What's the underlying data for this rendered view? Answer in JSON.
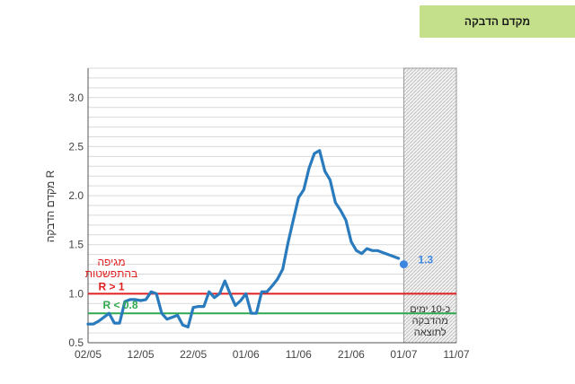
{
  "header": {
    "title": "מקדם הדבקה"
  },
  "colors": {
    "accent_green": "#c5e08a",
    "series_blue": "#2a7bbd",
    "threshold_red": "#e02020",
    "threshold_green": "#2fa84f",
    "point_blue": "#3d86e0"
  },
  "chart_data": {
    "type": "line",
    "title": "",
    "ylabel": "מקדם הדבקה R",
    "xlabel": "",
    "ylim": [
      0.5,
      3.3
    ],
    "y_ticks": [
      "0.5",
      "1.0",
      "1.5",
      "2.0",
      "2.5",
      "3.0"
    ],
    "x_ticks": [
      {
        "date": "2020-05-02",
        "label": "02/05"
      },
      {
        "date": "2020-05-12",
        "label": "12/05"
      },
      {
        "date": "2020-05-22",
        "label": "22/05"
      },
      {
        "date": "2020-06-01",
        "label": "01/06"
      },
      {
        "date": "2020-06-11",
        "label": "11/06"
      },
      {
        "date": "2020-06-21",
        "label": "21/06"
      },
      {
        "date": "2020-07-01",
        "label": "01/07"
      },
      {
        "date": "2020-07-11",
        "label": "11/07"
      }
    ],
    "xlim": [
      "2020-05-02",
      "2020-07-11"
    ],
    "grid": true,
    "series": [
      {
        "x": [
          "2020-05-02",
          "2020-05-03",
          "2020-05-04",
          "2020-05-05",
          "2020-05-06",
          "2020-05-07",
          "2020-05-08",
          "2020-05-09",
          "2020-05-10",
          "2020-05-11",
          "2020-05-12",
          "2020-05-13",
          "2020-05-14",
          "2020-05-15",
          "2020-05-16",
          "2020-05-17",
          "2020-05-18",
          "2020-05-19",
          "2020-05-20",
          "2020-05-21",
          "2020-05-22",
          "2020-05-23",
          "2020-05-24",
          "2020-05-25",
          "2020-05-26",
          "2020-05-27",
          "2020-05-28",
          "2020-05-29",
          "2020-05-30",
          "2020-05-31",
          "2020-06-01",
          "2020-06-02",
          "2020-06-03",
          "2020-06-04",
          "2020-06-05",
          "2020-06-06",
          "2020-06-07",
          "2020-06-08",
          "2020-06-09",
          "2020-06-10",
          "2020-06-11",
          "2020-06-12",
          "2020-06-13",
          "2020-06-14",
          "2020-06-15",
          "2020-06-16",
          "2020-06-17",
          "2020-06-18",
          "2020-06-19",
          "2020-06-20",
          "2020-06-21",
          "2020-06-22",
          "2020-06-23",
          "2020-06-24",
          "2020-06-25",
          "2020-06-26",
          "2020-06-27",
          "2020-06-28",
          "2020-06-29",
          "2020-06-30"
        ],
        "values": [
          0.69,
          0.69,
          0.72,
          0.76,
          0.8,
          0.7,
          0.7,
          0.92,
          0.94,
          0.94,
          0.93,
          0.94,
          1.02,
          1.0,
          0.8,
          0.74,
          0.76,
          0.78,
          0.68,
          0.66,
          0.86,
          0.87,
          0.87,
          1.02,
          0.96,
          1.0,
          1.13,
          1.0,
          0.88,
          0.93,
          1.0,
          0.8,
          0.8,
          1.02,
          1.02,
          1.08,
          1.15,
          1.25,
          1.52,
          1.75,
          1.98,
          2.06,
          2.28,
          2.43,
          2.46,
          2.25,
          2.16,
          1.93,
          1.85,
          1.75,
          1.53,
          1.44,
          1.41,
          1.46,
          1.44,
          1.44,
          1.42,
          1.4,
          1.38,
          1.36
        ]
      }
    ],
    "thresholds": [
      {
        "y": 1.0,
        "label": "R > 1",
        "note": "מגיפה בהתפשטות",
        "color": "#e02020"
      },
      {
        "y": 0.8,
        "label": "R < 0.8",
        "color": "#2fa84f"
      }
    ],
    "highlight_point": {
      "x": "2020-07-01",
      "y": 1.3,
      "label": "1.3"
    },
    "shaded_region": {
      "from": "2020-07-01",
      "to": "2020-07-11",
      "label": "כ-10 ימים מהדבקה לתוצאה"
    }
  }
}
